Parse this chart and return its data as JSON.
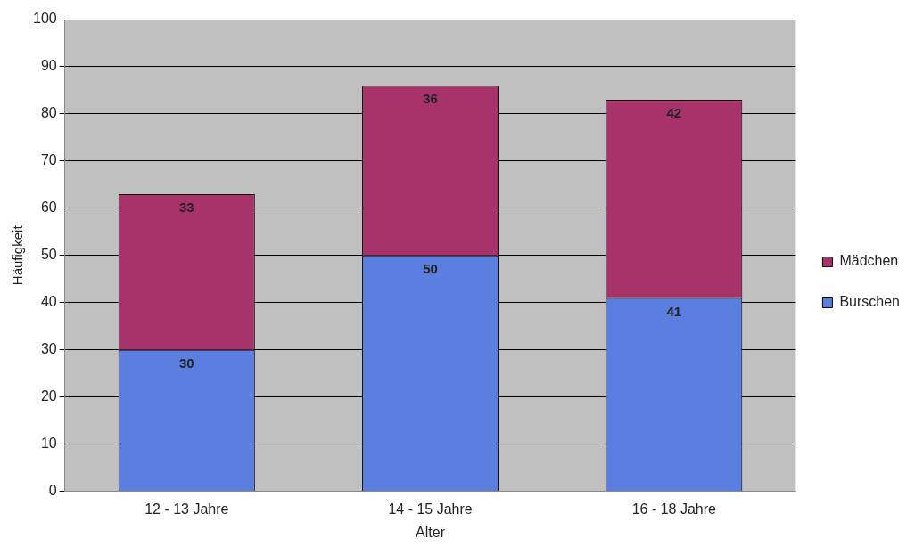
{
  "chart_data": {
    "type": "bar",
    "stacked": true,
    "xlabel": "Alter",
    "ylabel": "Häufigkeit",
    "categories": [
      "12 - 13 Jahre",
      "14 - 15 Jahre",
      "16 - 18 Jahre"
    ],
    "series": [
      {
        "name": "Burschen",
        "color": "#5b7fe0",
        "values": [
          30,
          50,
          41
        ]
      },
      {
        "name": "Mädchen",
        "color": "#a8336a",
        "values": [
          33,
          36,
          42
        ]
      }
    ],
    "ylim": [
      0,
      100
    ],
    "yticks": [
      0,
      10,
      20,
      30,
      40,
      50,
      60,
      70,
      80,
      90,
      100
    ],
    "grid": "y",
    "legend": "right",
    "data_labels": true
  }
}
